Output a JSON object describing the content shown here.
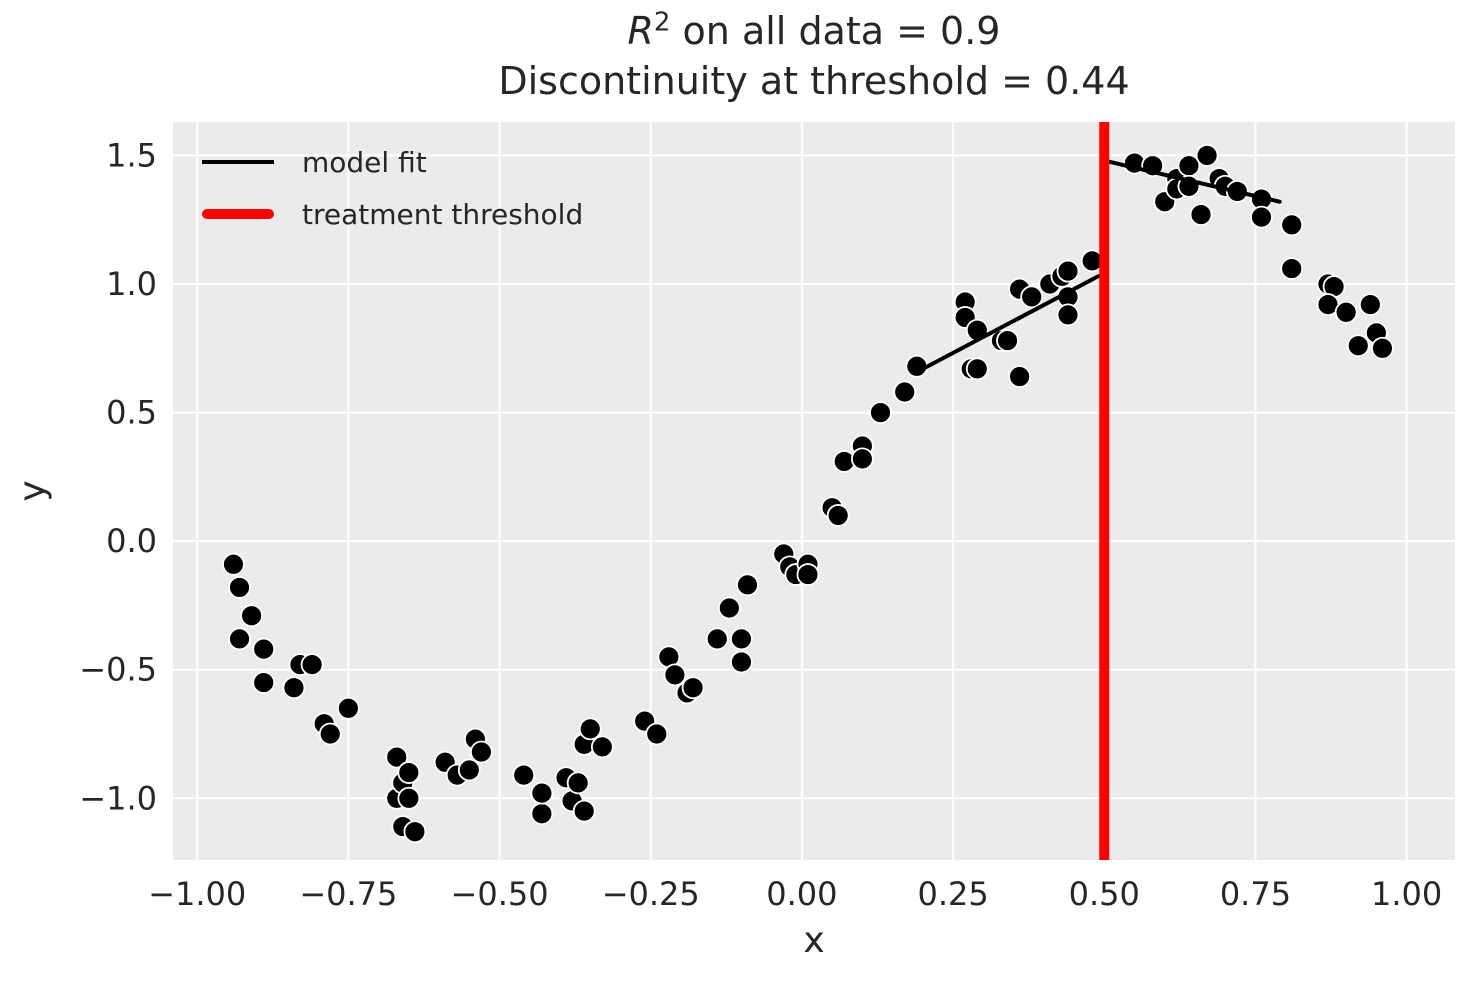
{
  "title": {
    "r_italic": "R",
    "r_sup": "2",
    "line1_rest": " on all data = 0.9",
    "line2": "Discontinuity at threshold = 0.44"
  },
  "legend": {
    "items": [
      {
        "label": "model fit",
        "swatch": "black-line"
      },
      {
        "label": "treatment threshold",
        "swatch": "red-line"
      }
    ]
  },
  "colors": {
    "axes_background": "#ebebeb",
    "gridline": "#ffffff",
    "point_fill": "#000000",
    "point_edge": "#ffffff",
    "fit_line": "#000000",
    "threshold_line": "#ff0000",
    "text": "#262626"
  },
  "chart_data": {
    "type": "scatter",
    "title": "R^2 on all data = 0.9\nDiscontinuity at threshold = 0.44",
    "xlabel": "x",
    "ylabel": "y",
    "xlim": [
      -1.04,
      1.08
    ],
    "ylim": [
      -1.24,
      1.63
    ],
    "grid": true,
    "legend_position": "upper left",
    "x_ticks": [
      {
        "v": -1.0,
        "label": "−1.00"
      },
      {
        "v": -0.75,
        "label": "−0.75"
      },
      {
        "v": -0.5,
        "label": "−0.50"
      },
      {
        "v": -0.25,
        "label": "−0.25"
      },
      {
        "v": 0.0,
        "label": "0.00"
      },
      {
        "v": 0.25,
        "label": "0.25"
      },
      {
        "v": 0.5,
        "label": "0.50"
      },
      {
        "v": 0.75,
        "label": "0.75"
      },
      {
        "v": 1.0,
        "label": "1.00"
      }
    ],
    "y_ticks": [
      {
        "v": -1.0,
        "label": "−1.0"
      },
      {
        "v": -0.5,
        "label": "−0.5"
      },
      {
        "v": 0.0,
        "label": "0.0"
      },
      {
        "v": 0.5,
        "label": "0.5"
      },
      {
        "v": 1.0,
        "label": "1.0"
      },
      {
        "v": 1.5,
        "label": "1.5"
      }
    ],
    "threshold_x": 0.5,
    "fit_segments": [
      {
        "x": [
          0.2,
          0.49
        ],
        "y": [
          0.67,
          1.03
        ]
      },
      {
        "x": [
          0.5,
          0.79
        ],
        "y": [
          1.48,
          1.32
        ]
      }
    ],
    "points": [
      [
        -0.94,
        -0.09
      ],
      [
        -0.93,
        -0.18
      ],
      [
        -0.91,
        -0.29
      ],
      [
        -0.93,
        -0.38
      ],
      [
        -0.89,
        -0.42
      ],
      [
        -0.89,
        -0.55
      ],
      [
        -0.84,
        -0.57
      ],
      [
        -0.83,
        -0.48
      ],
      [
        -0.81,
        -0.48
      ],
      [
        -0.79,
        -0.71
      ],
      [
        -0.78,
        -0.75
      ],
      [
        -0.75,
        -0.65
      ],
      [
        -0.67,
        -1.0
      ],
      [
        -0.67,
        -0.84
      ],
      [
        -0.66,
        -0.94
      ],
      [
        -0.66,
        -1.11
      ],
      [
        -0.65,
        -1.0
      ],
      [
        -0.65,
        -0.9
      ],
      [
        -0.64,
        -1.13
      ],
      [
        -0.59,
        -0.86
      ],
      [
        -0.57,
        -0.91
      ],
      [
        -0.55,
        -0.89
      ],
      [
        -0.54,
        -0.77
      ],
      [
        -0.53,
        -0.82
      ],
      [
        -0.46,
        -0.91
      ],
      [
        -0.43,
        -1.06
      ],
      [
        -0.43,
        -0.98
      ],
      [
        -0.39,
        -0.92
      ],
      [
        -0.38,
        -1.01
      ],
      [
        -0.37,
        -0.94
      ],
      [
        -0.36,
        -1.05
      ],
      [
        -0.36,
        -0.79
      ],
      [
        -0.35,
        -0.73
      ],
      [
        -0.33,
        -0.8
      ],
      [
        -0.26,
        -0.7
      ],
      [
        -0.24,
        -0.75
      ],
      [
        -0.22,
        -0.45
      ],
      [
        -0.21,
        -0.52
      ],
      [
        -0.19,
        -0.59
      ],
      [
        -0.18,
        -0.57
      ],
      [
        -0.14,
        -0.38
      ],
      [
        -0.12,
        -0.26
      ],
      [
        -0.1,
        -0.38
      ],
      [
        -0.1,
        -0.47
      ],
      [
        -0.09,
        -0.17
      ],
      [
        -0.03,
        -0.05
      ],
      [
        -0.02,
        -0.1
      ],
      [
        -0.01,
        -0.13
      ],
      [
        0.01,
        -0.09
      ],
      [
        0.01,
        -0.13
      ],
      [
        0.05,
        0.13
      ],
      [
        0.06,
        0.1
      ],
      [
        0.07,
        0.31
      ],
      [
        0.1,
        0.37
      ],
      [
        0.1,
        0.32
      ],
      [
        0.13,
        0.5
      ],
      [
        0.17,
        0.58
      ],
      [
        0.19,
        0.68
      ],
      [
        0.27,
        0.93
      ],
      [
        0.27,
        0.87
      ],
      [
        0.28,
        0.67
      ],
      [
        0.29,
        0.67
      ],
      [
        0.29,
        0.82
      ],
      [
        0.33,
        0.78
      ],
      [
        0.34,
        0.78
      ],
      [
        0.36,
        0.98
      ],
      [
        0.36,
        0.64
      ],
      [
        0.38,
        0.95
      ],
      [
        0.41,
        1.0
      ],
      [
        0.43,
        1.03
      ],
      [
        0.44,
        1.05
      ],
      [
        0.44,
        0.95
      ],
      [
        0.44,
        0.88
      ],
      [
        0.48,
        1.09
      ],
      [
        0.55,
        1.47
      ],
      [
        0.58,
        1.46
      ],
      [
        0.6,
        1.32
      ],
      [
        0.62,
        1.41
      ],
      [
        0.62,
        1.37
      ],
      [
        0.64,
        1.46
      ],
      [
        0.64,
        1.38
      ],
      [
        0.66,
        1.27
      ],
      [
        0.67,
        1.5
      ],
      [
        0.69,
        1.41
      ],
      [
        0.7,
        1.38
      ],
      [
        0.72,
        1.36
      ],
      [
        0.76,
        1.33
      ],
      [
        0.76,
        1.26
      ],
      [
        0.81,
        1.23
      ],
      [
        0.81,
        1.06
      ],
      [
        0.87,
        1.0
      ],
      [
        0.88,
        0.99
      ],
      [
        0.87,
        0.92
      ],
      [
        0.9,
        0.89
      ],
      [
        0.94,
        0.92
      ],
      [
        0.92,
        0.76
      ],
      [
        0.95,
        0.81
      ],
      [
        0.96,
        0.75
      ]
    ]
  }
}
